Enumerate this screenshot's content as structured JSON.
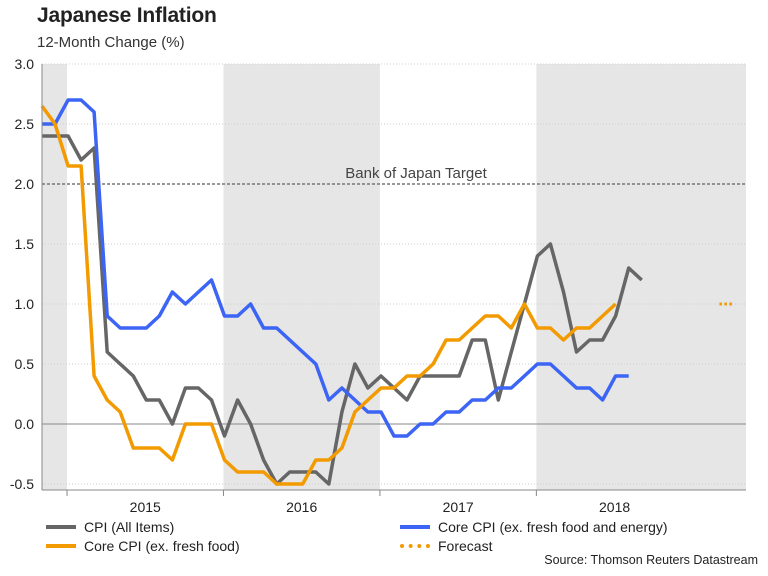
{
  "header": {
    "title": "Japanese Inflation",
    "subtitle": "12-Month Change (%)"
  },
  "source": "Source: Thomson Reuters Datastream",
  "legend": [
    {
      "label": "CPI (All Items)",
      "color": "#666666",
      "style": "solid"
    },
    {
      "label": "Core CPI (ex. fresh food and energy)",
      "color": "#3c64f5",
      "style": "solid"
    },
    {
      "label": "Core CPI (ex. fresh food)",
      "color": "#f29a00",
      "style": "solid"
    },
    {
      "label": "Forecast",
      "color": "#f29a00",
      "style": "dotted"
    }
  ],
  "chart_data": {
    "type": "line",
    "title": "Japanese Inflation",
    "ylabel": "12-Month Change (%)",
    "xlabel": "",
    "ylim": [
      -0.55,
      3.0
    ],
    "xlim": [
      2014.42,
      2018.92
    ],
    "yticks": [
      3.0,
      2.5,
      2.0,
      1.5,
      1.0,
      0.5,
      0.0,
      -0.5
    ],
    "ytick_labels": [
      "3.0",
      "2.5",
      "2.0",
      "1.5",
      "1.0",
      "0.5",
      "0.0",
      "-0.5"
    ],
    "xtick_positions": [
      2014.58,
      2015.58,
      2016.58,
      2017.58
    ],
    "year_labels": [
      {
        "x": 2015.08,
        "label": "2015"
      },
      {
        "x": 2016.08,
        "label": "2016"
      },
      {
        "x": 2017.08,
        "label": "2017"
      },
      {
        "x": 2018.08,
        "label": "2018"
      }
    ],
    "shaded_periods": [
      [
        2014.42,
        2014.58
      ],
      [
        2015.58,
        2016.58
      ],
      [
        2017.58,
        2018.92
      ]
    ],
    "reference_line": {
      "y": 2.0,
      "label": "Bank of Japan Target"
    },
    "series": [
      {
        "name": "CPI (All Items)",
        "color": "#666666",
        "x_start": 2014.42,
        "step": 0.0833333,
        "values": [
          2.4,
          2.4,
          2.4,
          2.2,
          2.3,
          0.6,
          0.5,
          0.4,
          0.2,
          0.2,
          0.0,
          0.3,
          0.3,
          0.2,
          -0.1,
          0.2,
          0.0,
          -0.3,
          -0.5,
          -0.4,
          -0.4,
          -0.4,
          -0.5,
          0.1,
          0.5,
          0.3,
          0.4,
          0.3,
          0.2,
          0.4,
          0.4,
          0.4,
          0.4,
          0.7,
          0.7,
          0.2,
          0.6,
          1.0,
          1.4,
          1.5,
          1.1,
          0.6,
          0.7,
          0.7,
          0.9,
          1.3,
          1.2
        ]
      },
      {
        "name": "Core CPI (ex. fresh food and energy)",
        "color": "#3c64f5",
        "x_start": 2014.42,
        "step": 0.0833333,
        "values": [
          2.5,
          2.5,
          2.7,
          2.7,
          2.6,
          0.9,
          0.8,
          0.8,
          0.8,
          0.9,
          1.1,
          1.0,
          1.1,
          1.2,
          0.9,
          0.9,
          1.0,
          0.8,
          0.8,
          0.7,
          0.6,
          0.5,
          0.2,
          0.3,
          0.2,
          0.1,
          0.1,
          -0.1,
          -0.1,
          0.0,
          0.0,
          0.1,
          0.1,
          0.2,
          0.2,
          0.3,
          0.3,
          0.4,
          0.5,
          0.5,
          0.4,
          0.3,
          0.3,
          0.2,
          0.4,
          0.4
        ]
      },
      {
        "name": "Core CPI (ex. fresh food)",
        "color": "#f29a00",
        "x_start": 2014.42,
        "step": 0.0833333,
        "values": [
          2.65,
          2.5,
          2.15,
          2.15,
          0.4,
          0.2,
          0.1,
          -0.2,
          -0.2,
          -0.2,
          -0.3,
          0.0,
          0.0,
          0.0,
          -0.3,
          -0.4,
          -0.4,
          -0.4,
          -0.5,
          -0.5,
          -0.5,
          -0.3,
          -0.3,
          -0.2,
          0.1,
          0.2,
          0.3,
          0.3,
          0.4,
          0.4,
          0.5,
          0.7,
          0.7,
          0.8,
          0.9,
          0.9,
          0.8,
          1.0,
          0.8,
          0.8,
          0.7,
          0.8,
          0.8,
          0.9,
          1.0
        ]
      },
      {
        "name": "Forecast",
        "color": "#f29a00",
        "dashed": true,
        "x": [
          2018.75,
          2018.83
        ],
        "values": [
          1.0,
          1.0
        ]
      }
    ]
  }
}
